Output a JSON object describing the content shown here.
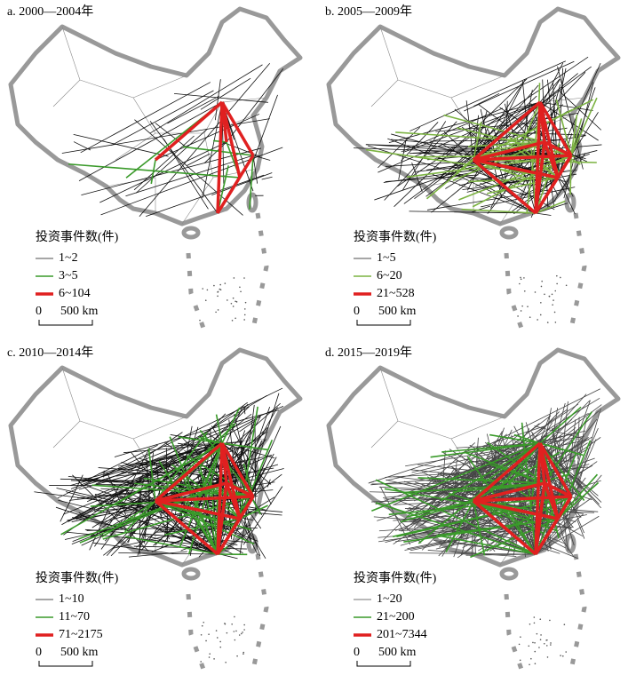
{
  "panels": [
    {
      "title": "a. 2000—2004年",
      "legend": {
        "title": "投资事件数(件)",
        "items": [
          "1~2",
          "3~5",
          "6~104"
        ]
      },
      "scale": {
        "zero": "0",
        "label": "500 km"
      }
    },
    {
      "title": "b. 2005—2009年",
      "legend": {
        "title": "投资事件数(件)",
        "items": [
          "1~5",
          "6~20",
          "21~528"
        ]
      },
      "scale": {
        "zero": "0",
        "label": "500 km"
      }
    },
    {
      "title": "c. 2010—2014年",
      "legend": {
        "title": "投资事件数(件)",
        "items": [
          "1~10",
          "11~70",
          "71~2175"
        ]
      },
      "scale": {
        "zero": "0",
        "label": "500 km"
      }
    },
    {
      "title": "d. 2015—2019年",
      "legend": {
        "title": "投资事件数(件)",
        "items": [
          "1~20",
          "21~200",
          "201~7344"
        ]
      },
      "scale": {
        "zero": "0",
        "label": "500 km"
      }
    }
  ]
}
